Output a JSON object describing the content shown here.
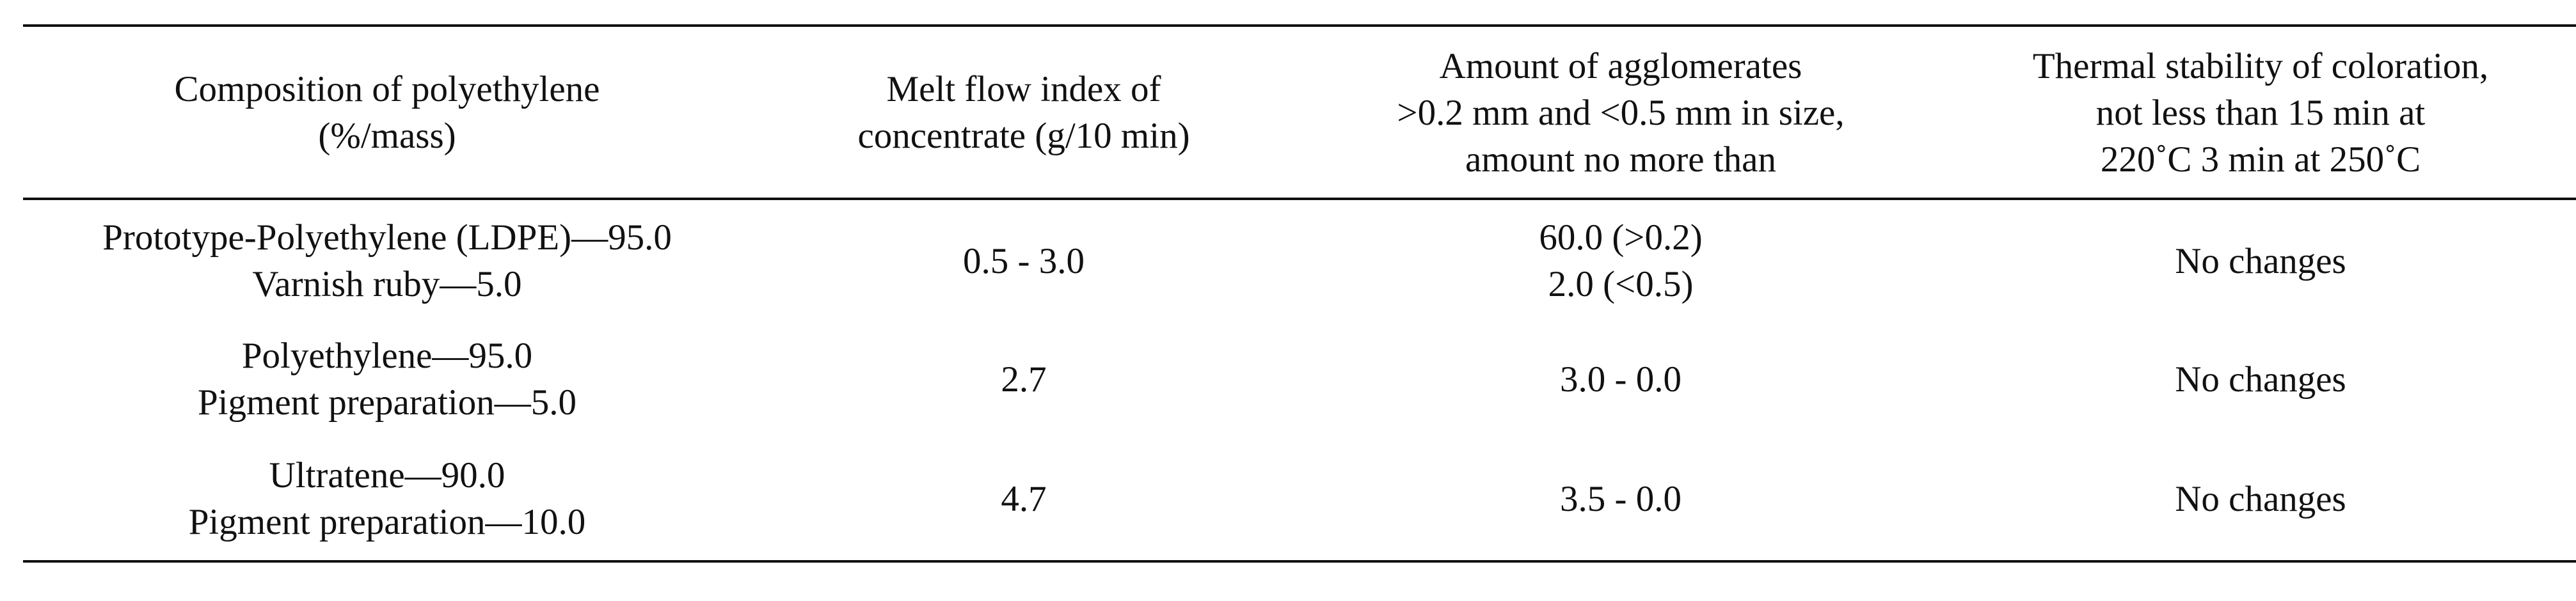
{
  "table": {
    "headers": [
      [
        "Composition of polyethylene",
        "(%/mass)"
      ],
      [
        "Melt flow index of",
        "concentrate (g/10 min)"
      ],
      [
        "Amount of agglomerates",
        ">0.2 mm and <0.5 mm in size,",
        "amount no more than"
      ],
      [
        "Thermal stability of coloration,",
        "not less than 15 min at",
        "220˚C 3 min at 250˚C"
      ]
    ],
    "rows": [
      {
        "composition": [
          "Prototype-Polyethylene (LDPE)—95.0",
          "Varnish ruby—5.0"
        ],
        "melt_flow_index": "0.5 - 3.0",
        "agglomerates": [
          "60.0 (>0.2)",
          "2.0 (<0.5)"
        ],
        "thermal_stability": "No changes"
      },
      {
        "composition": [
          "Polyethylene—95.0",
          "Pigment preparation—5.0"
        ],
        "melt_flow_index": "2.7",
        "agglomerates": [
          "3.0 - 0.0"
        ],
        "thermal_stability": "No changes"
      },
      {
        "composition": [
          "Ultratene—90.0",
          "Pigment preparation—10.0"
        ],
        "melt_flow_index": "4.7",
        "agglomerates": [
          "3.5 - 0.0"
        ],
        "thermal_stability": "No changes"
      }
    ]
  }
}
